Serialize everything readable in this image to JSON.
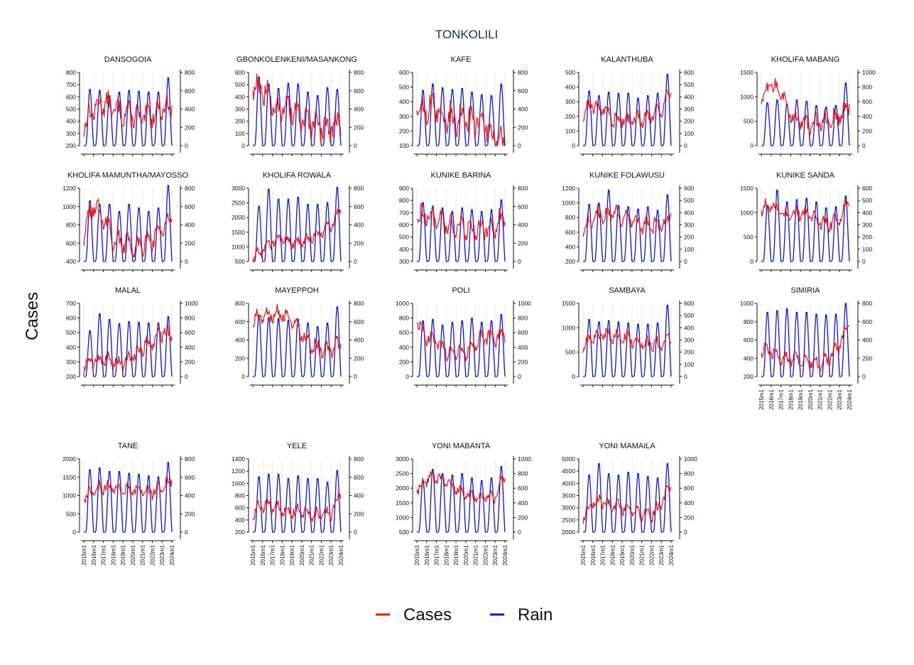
{
  "page": {
    "title": "TONKOLILI",
    "ylabel": "Cases"
  },
  "legend": [
    {
      "name": "Cases",
      "color": "#ee1111"
    },
    {
      "name": "Rain",
      "color": "#1111dd"
    }
  ],
  "chart_data": {
    "type": "line",
    "title": "TONKOLILI",
    "ylabel": "Cases",
    "x_start": "2015m1",
    "x_end": "2024m1",
    "x_tick_labels": [
      "2015m1",
      "2016m1",
      "2017m1",
      "2018m1",
      "2019m1",
      "2020m1",
      "2021m1",
      "2022m1",
      "2023m1",
      "2024m1"
    ],
    "grid": true,
    "legend_position": "bottom",
    "series_names": [
      "Cases",
      "Rain"
    ],
    "panels": [
      {
        "name": "DANSOGOIA",
        "cases_ylim": [
          200,
          800
        ],
        "cases_ticks": [
          200,
          300,
          400,
          500,
          600,
          700,
          800
        ],
        "rain_ylim": [
          0,
          800
        ],
        "rain_ticks": [
          0,
          200,
          400,
          600,
          800
        ],
        "rain_peaks": [
          630,
          620,
          560,
          600,
          620,
          610,
          600,
          600,
          760
        ],
        "cases_yearly": [
          370,
          500,
          560,
          500,
          470,
          450,
          420,
          460,
          510,
          530
        ],
        "cases_amp": 100
      },
      {
        "name": "GBONKOLENKENI/MASANKONG",
        "cases_ylim": [
          0,
          600
        ],
        "cases_ticks": [
          0,
          100,
          200,
          300,
          400,
          500,
          600
        ],
        "rain_ylim": [
          0,
          800
        ],
        "rain_ticks": [
          0,
          200,
          400,
          600,
          800
        ],
        "rain_peaks": [
          770,
          690,
          640,
          700,
          690,
          600,
          560,
          650,
          630
        ],
        "cases_yearly": [
          500,
          450,
          350,
          300,
          300,
          200,
          170,
          150,
          150,
          200
        ],
        "cases_amp": 110
      },
      {
        "name": "KAFE",
        "cases_ylim": [
          100,
          600
        ],
        "cases_ticks": [
          100,
          200,
          300,
          400,
          500,
          600
        ],
        "rain_ylim": [
          0,
          800
        ],
        "rain_ticks": [
          0,
          200,
          400,
          600,
          800
        ],
        "rain_peaks": [
          620,
          690,
          650,
          630,
          640,
          600,
          570,
          560,
          690
        ],
        "cases_yearly": [
          330,
          360,
          340,
          300,
          280,
          270,
          260,
          230,
          150,
          120
        ],
        "cases_amp": 100
      },
      {
        "name": "KALANTHUBA",
        "cases_ylim": [
          0,
          500
        ],
        "cases_ticks": [
          0,
          100,
          200,
          300,
          400,
          500
        ],
        "rain_ylim": [
          0,
          600
        ],
        "rain_ticks": [
          0,
          100,
          200,
          300,
          400,
          500,
          600
        ],
        "rain_peaks": [
          460,
          420,
          450,
          440,
          440,
          400,
          420,
          440,
          600
        ],
        "cases_yearly": [
          210,
          290,
          250,
          190,
          180,
          160,
          190,
          220,
          250,
          380
        ],
        "cases_amp": 60
      },
      {
        "name": "KHOLIFA MABANG",
        "cases_ylim": [
          0,
          1500
        ],
        "cases_ticks": [
          0,
          500,
          1000,
          1500
        ],
        "rain_ylim": [
          0,
          1000
        ],
        "rain_ticks": [
          0,
          200,
          400,
          600,
          800,
          1000
        ],
        "rain_peaks": [
          600,
          640,
          580,
          640,
          620,
          560,
          540,
          560,
          880
        ],
        "cases_yearly": [
          900,
          1250,
          1100,
          650,
          500,
          450,
          500,
          550,
          600,
          850
        ],
        "cases_amp": 180
      },
      {
        "name": "KHOLIFA MAMUNTHA/MAYOSSO",
        "cases_ylim": [
          400,
          1200
        ],
        "cases_ticks": [
          400,
          600,
          800,
          1000,
          1200
        ],
        "rain_ylim": [
          0,
          800
        ],
        "rain_ticks": [
          0,
          200,
          400,
          600,
          800
        ],
        "rain_peaks": [
          680,
          640,
          640,
          560,
          640,
          600,
          560,
          600,
          850
        ],
        "cases_yearly": [
          700,
          1000,
          900,
          650,
          600,
          560,
          600,
          650,
          750,
          950
        ],
        "cases_amp": 120
      },
      {
        "name": "KHOLIFA ROWALA",
        "cases_ylim": [
          500,
          3000
        ],
        "cases_ticks": [
          500,
          1000,
          1500,
          2000,
          2500,
          3000
        ],
        "rain_ylim": [
          0,
          800
        ],
        "rain_ticks": [
          0,
          200,
          400,
          600,
          800
        ],
        "rain_peaks": [
          620,
          810,
          700,
          700,
          720,
          640,
          640,
          660,
          830
        ],
        "cases_yearly": [
          700,
          900,
          1200,
          1250,
          1150,
          1200,
          1350,
          1500,
          1700,
          2300
        ],
        "cases_amp": 220
      },
      {
        "name": "KUNIKE BARINA",
        "cases_ylim": [
          300,
          900
        ],
        "cases_ticks": [
          300,
          400,
          500,
          600,
          700,
          800,
          900
        ],
        "rain_ylim": [
          0,
          800
        ],
        "rain_ticks": [
          0,
          200,
          400,
          600,
          800
        ],
        "rain_peaks": [
          660,
          620,
          600,
          560,
          600,
          580,
          560,
          580,
          690
        ],
        "cases_yearly": [
          650,
          700,
          630,
          600,
          580,
          580,
          570,
          580,
          600,
          650
        ],
        "cases_amp": 90
      },
      {
        "name": "KUNIKE FOLAWUSU",
        "cases_ylim": [
          200,
          1200
        ],
        "cases_ticks": [
          200,
          400,
          600,
          800,
          1000,
          1200
        ],
        "rain_ylim": [
          0,
          600
        ],
        "rain_ticks": [
          0,
          100,
          200,
          300,
          400,
          500,
          600
        ],
        "rain_peaks": [
          480,
          490,
          600,
          470,
          460,
          440,
          460,
          430,
          560
        ],
        "cases_yearly": [
          650,
          800,
          850,
          850,
          800,
          750,
          700,
          700,
          650,
          850
        ],
        "cases_amp": 120
      },
      {
        "name": "KUNIKE SANDA",
        "cases_ylim": [
          0,
          1500
        ],
        "cases_ticks": [
          0,
          500,
          1000,
          1500
        ],
        "rain_ylim": [
          0,
          600
        ],
        "rain_ticks": [
          0,
          100,
          200,
          300,
          400,
          500,
          600
        ],
        "rain_peaks": [
          470,
          600,
          500,
          520,
          530,
          500,
          450,
          460,
          550
        ],
        "cases_yearly": [
          1100,
          1150,
          1000,
          950,
          1000,
          950,
          800,
          780,
          850,
          1300
        ],
        "cases_amp": 150
      },
      {
        "name": "MALAL",
        "cases_ylim": [
          200,
          700
        ],
        "cases_ticks": [
          200,
          300,
          400,
          500,
          600,
          700
        ],
        "rain_ylim": [
          0,
          1000
        ],
        "rain_ticks": [
          0,
          200,
          400,
          600,
          800,
          1000
        ],
        "rain_peaks": [
          640,
          880,
          800,
          740,
          770,
          760,
          750,
          750,
          840
        ],
        "cases_yearly": [
          280,
          320,
          320,
          290,
          290,
          330,
          400,
          450,
          500,
          480
        ],
        "cases_amp": 60
      },
      {
        "name": "MAYEPPOH",
        "cases_ylim": [
          0,
          800
        ],
        "cases_ticks": [
          0,
          200,
          400,
          600,
          800
        ],
        "rain_ylim": [
          0,
          800
        ],
        "rain_ticks": [
          0,
          200,
          400,
          600,
          800
        ],
        "rain_peaks": [
          680,
          660,
          650,
          630,
          640,
          600,
          560,
          600,
          780
        ],
        "cases_yearly": [
          620,
          650,
          680,
          680,
          600,
          450,
          350,
          300,
          300,
          380
        ],
        "cases_amp": 90
      },
      {
        "name": "POLI",
        "cases_ylim": [
          0,
          1000
        ],
        "cases_ticks": [
          0,
          200,
          400,
          600,
          800,
          1000
        ],
        "rain_ylim": [
          0,
          1000
        ],
        "rain_ticks": [
          0,
          200,
          400,
          600,
          800,
          1000
        ],
        "rain_peaks": [
          780,
          800,
          720,
          760,
          780,
          820,
          760,
          780,
          870
        ],
        "cases_yearly": [
          750,
          550,
          450,
          350,
          320,
          350,
          450,
          550,
          500,
          600
        ],
        "cases_amp": 110
      },
      {
        "name": "SAMBAYA",
        "cases_ylim": [
          0,
          1500
        ],
        "cases_ticks": [
          0,
          500,
          1000,
          1500
        ],
        "rain_ylim": [
          0,
          600
        ],
        "rain_ticks": [
          0,
          100,
          200,
          300,
          400,
          500,
          600
        ],
        "rain_peaks": [
          480,
          460,
          470,
          460,
          450,
          440,
          440,
          450,
          600
        ],
        "cases_yearly": [
          650,
          800,
          850,
          850,
          800,
          750,
          700,
          650,
          700,
          850
        ],
        "cases_amp": 150
      },
      {
        "name": "SIMIRIA",
        "cases_ylim": [
          200,
          1000
        ],
        "cases_ticks": [
          200,
          400,
          600,
          800,
          1000
        ],
        "rain_ylim": [
          0,
          800
        ],
        "rain_ticks": [
          0,
          200,
          400,
          600,
          800
        ],
        "rain_peaks": [
          720,
          740,
          760,
          720,
          720,
          700,
          690,
          700,
          820
        ],
        "cases_yearly": [
          500,
          480,
          420,
          380,
          380,
          360,
          340,
          400,
          550,
          800
        ],
        "cases_amp": 80,
        "show_x_ticks": true
      },
      {
        "name": "TANE",
        "cases_ylim": [
          0,
          2000
        ],
        "cases_ticks": [
          0,
          500,
          1000,
          1500,
          2000
        ],
        "rain_ylim": [
          0,
          800
        ],
        "rain_ticks": [
          0,
          200,
          400,
          600,
          800
        ],
        "rain_peaks": [
          700,
          720,
          680,
          680,
          660,
          650,
          630,
          620,
          780
        ],
        "cases_yearly": [
          900,
          1200,
          1250,
          1200,
          1200,
          1150,
          1150,
          1100,
          1200,
          1450
        ],
        "cases_amp": 180,
        "show_x_ticks": true
      },
      {
        "name": "YELE",
        "cases_ylim": [
          200,
          1400
        ],
        "cases_ticks": [
          200,
          400,
          600,
          800,
          1000,
          1200,
          1400
        ],
        "rain_ylim": [
          0,
          800
        ],
        "rain_ticks": [
          0,
          200,
          400,
          600,
          800
        ],
        "rain_peaks": [
          620,
          650,
          650,
          600,
          630,
          600,
          600,
          560,
          690
        ],
        "cases_yearly": [
          500,
          650,
          620,
          560,
          540,
          520,
          480,
          450,
          500,
          900
        ],
        "cases_amp": 120,
        "show_x_ticks": true
      },
      {
        "name": "YONI MABANTA",
        "cases_ylim": [
          500,
          3000
        ],
        "cases_ticks": [
          500,
          1000,
          1500,
          2000,
          2500,
          3000
        ],
        "rain_ylim": [
          0,
          1000
        ],
        "rain_ticks": [
          0,
          200,
          400,
          600,
          800,
          1000
        ],
        "rain_peaks": [
          720,
          880,
          820,
          800,
          820,
          760,
          720,
          760,
          920
        ],
        "cases_yearly": [
          1900,
          2300,
          2400,
          2200,
          2000,
          1800,
          1700,
          1650,
          1700,
          2500
        ],
        "cases_amp": 200,
        "show_x_ticks": true
      },
      {
        "name": "YONI MAMAILA",
        "cases_ylim": [
          2000,
          5000
        ],
        "cases_ticks": [
          2000,
          2500,
          3000,
          3500,
          4000,
          4500,
          5000
        ],
        "rain_ylim": [
          0,
          1000
        ],
        "rain_ticks": [
          0,
          200,
          400,
          600,
          800,
          1000
        ],
        "rain_peaks": [
          800,
          960,
          820,
          800,
          840,
          820,
          780,
          760,
          960
        ],
        "cases_yearly": [
          2700,
          3200,
          3300,
          3100,
          3000,
          2900,
          2800,
          2700,
          3100,
          4000
        ],
        "cases_amp": 300,
        "show_x_ticks": true
      }
    ]
  }
}
